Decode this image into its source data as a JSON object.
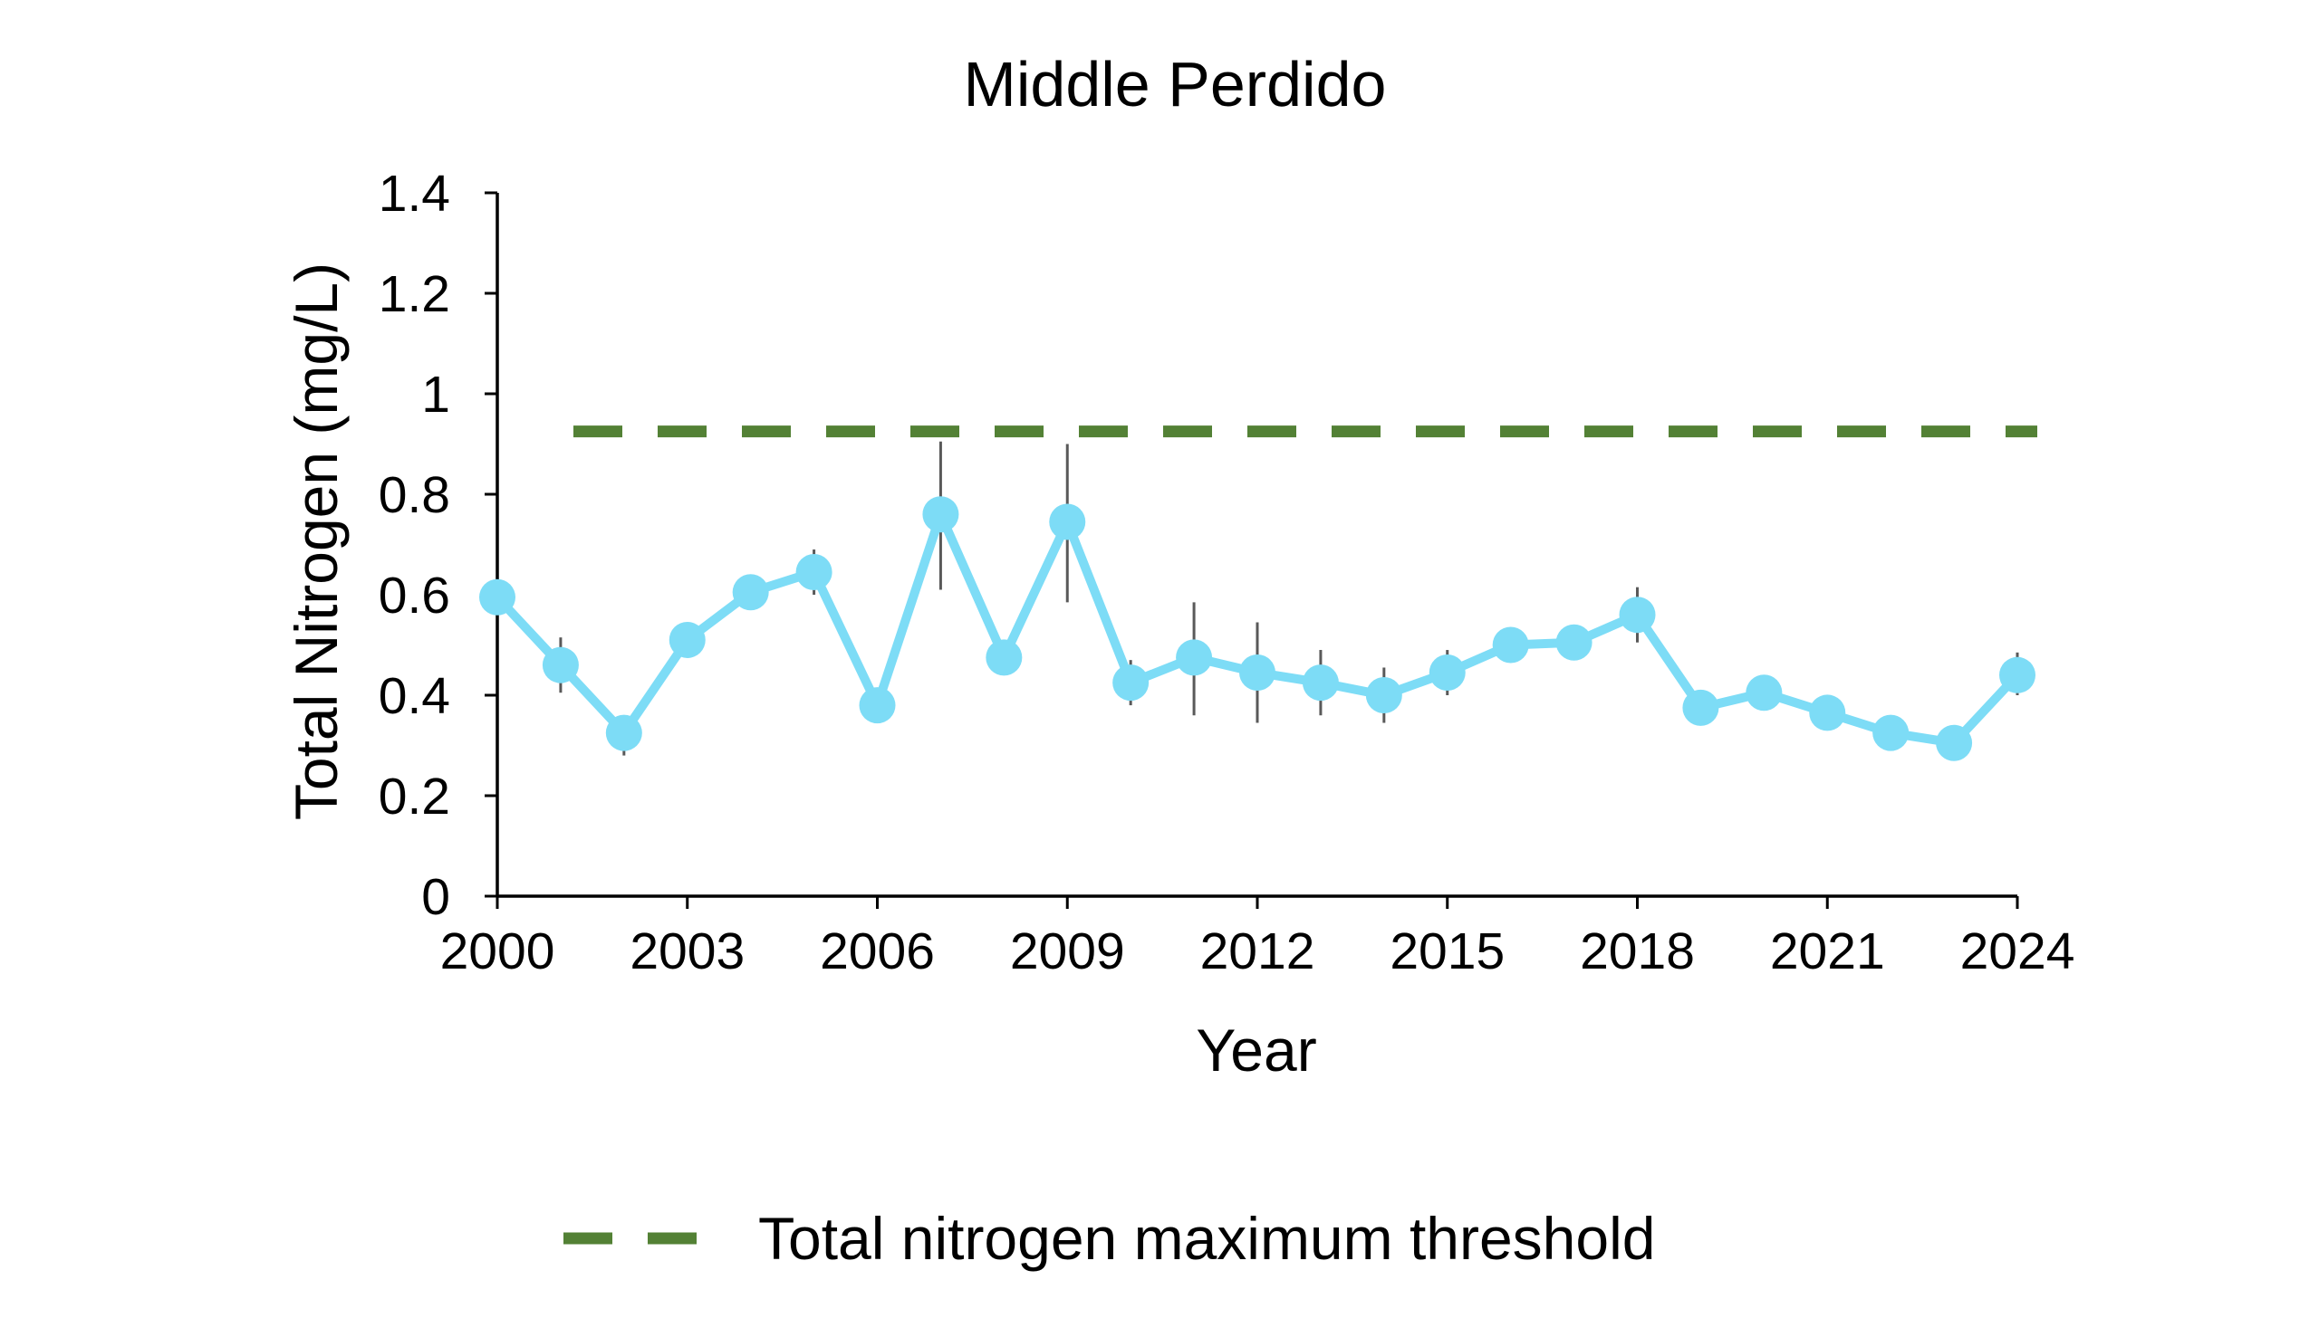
{
  "colors": {
    "series": "#7ddcf6",
    "threshold": "#538135",
    "error_bar": "#595959",
    "axis": "#000000"
  },
  "chart_data": {
    "type": "line",
    "title": "Middle Perdido",
    "xlabel": "Year",
    "ylabel": "Total Nitrogen (mg/L)",
    "xlim": [
      2000,
      2024
    ],
    "ylim": [
      0,
      1.4
    ],
    "x_ticks": [
      "2000",
      "2003",
      "2006",
      "2009",
      "2012",
      "2015",
      "2018",
      "2021",
      "2024"
    ],
    "y_ticks": [
      "0",
      "0.2",
      "0.4",
      "0.6",
      "0.8",
      "1",
      "1.2",
      "1.4"
    ],
    "grid": false,
    "legend_position": "bottom",
    "series": [
      {
        "x": [
          2000,
          2001,
          2002,
          2003,
          2004,
          2005,
          2006,
          2007,
          2008,
          2009,
          2010,
          2011,
          2012,
          2013,
          2014,
          2015,
          2016,
          2017,
          2018,
          2019,
          2020,
          2021,
          2022,
          2023,
          2024
        ],
        "values": [
          0.595,
          0.46,
          0.325,
          0.51,
          0.605,
          0.645,
          0.38,
          0.76,
          0.475,
          0.745,
          0.425,
          0.475,
          0.445,
          0.425,
          0.4,
          0.445,
          0.5,
          0.505,
          0.56,
          0.375,
          0.405,
          0.365,
          0.325,
          0.305,
          0.44
        ],
        "error_low": [
          null,
          0.405,
          0.28,
          null,
          null,
          0.6,
          null,
          0.61,
          null,
          0.585,
          0.38,
          0.36,
          0.345,
          0.36,
          0.345,
          0.4,
          null,
          null,
          0.505,
          null,
          null,
          null,
          null,
          0.27,
          0.4
        ],
        "error_high": [
          null,
          0.515,
          0.345,
          null,
          null,
          0.69,
          null,
          0.905,
          null,
          0.9,
          0.47,
          0.585,
          0.545,
          0.49,
          0.455,
          0.49,
          null,
          null,
          0.615,
          null,
          null,
          null,
          null,
          0.34,
          0.485
        ]
      },
      {
        "name": "Total nitrogen maximum threshold",
        "style": "dashed",
        "values": [
          0.925
        ]
      }
    ]
  }
}
